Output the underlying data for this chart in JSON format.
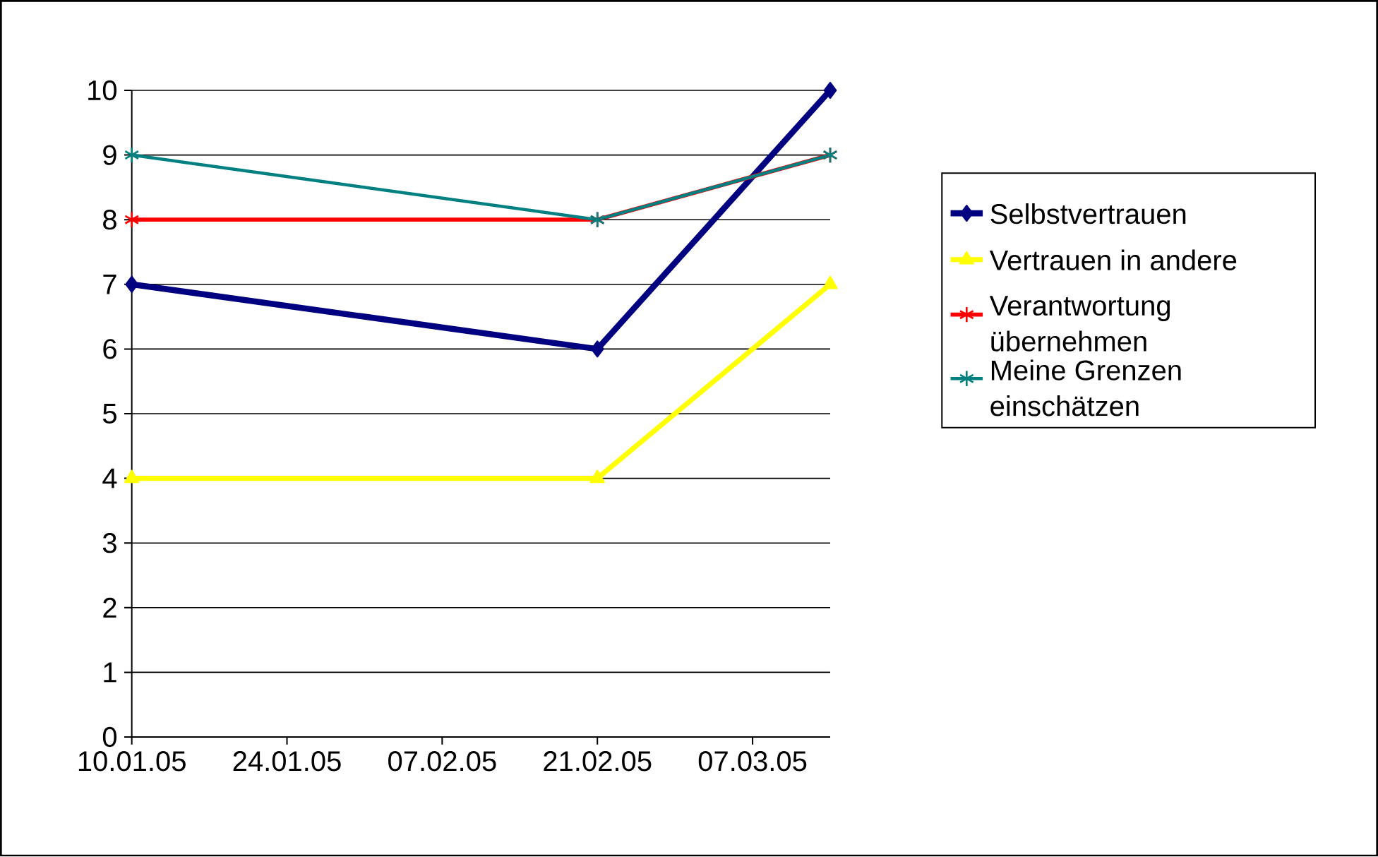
{
  "chart_data": {
    "type": "line",
    "x": [
      "2005-01-10",
      "2005-02-21",
      "2005-03-14"
    ],
    "series": [
      {
        "name": "Selbstvertrauen",
        "color": "#000080",
        "marker": "diamond",
        "values": [
          7,
          6,
          10
        ]
      },
      {
        "name": "Vertrauen in andere",
        "color": "#ffff00",
        "marker": "triangle",
        "values": [
          4,
          4,
          7
        ]
      },
      {
        "name": "Verantwortung übernehmen",
        "color": "#ff0000",
        "marker": "cross",
        "values": [
          8,
          8,
          9
        ]
      },
      {
        "name": "Meine Grenzen einschätzen",
        "color": "#008080",
        "marker": "cross",
        "values": [
          9,
          8,
          9
        ]
      }
    ],
    "xlim": [
      "2005-01-10",
      "2005-03-14"
    ],
    "xticks": [
      {
        "value": "2005-01-10",
        "label": "10.01.05"
      },
      {
        "value": "2005-01-24",
        "label": "24.01.05"
      },
      {
        "value": "2005-02-07",
        "label": "07.02.05"
      },
      {
        "value": "2005-02-21",
        "label": "21.02.05"
      },
      {
        "value": "2005-03-07",
        "label": "07.03.05"
      }
    ],
    "ylim": [
      0,
      10
    ],
    "yticks": [
      0,
      1,
      2,
      3,
      4,
      5,
      6,
      7,
      8,
      9,
      10
    ],
    "grid": "y",
    "legend": "right",
    "line_style": "solid"
  }
}
